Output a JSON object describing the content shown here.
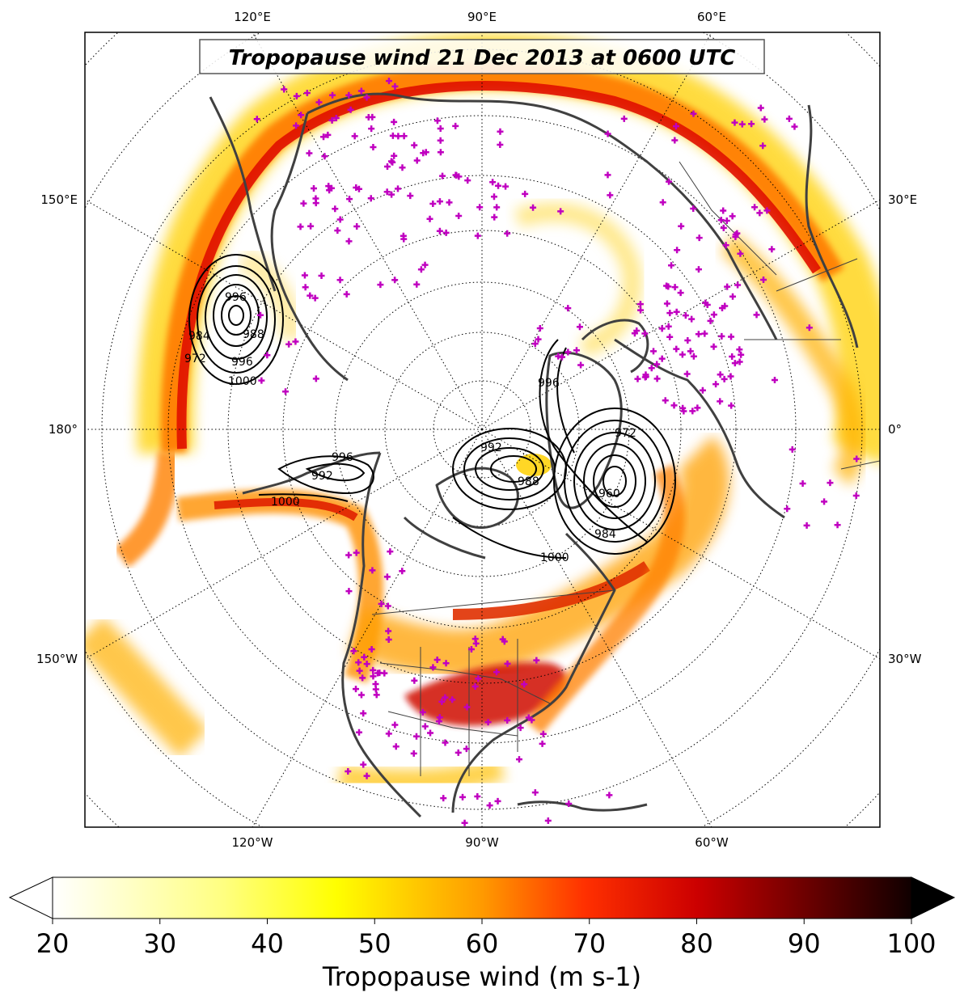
{
  "title": "Tropopause wind 21 Dec 2013 at 0600 UTC",
  "longitude_labels": {
    "top": [
      "120°E",
      "90°E",
      "60°E"
    ],
    "left": [
      "150°E",
      "180°",
      "150°W"
    ],
    "right": [
      "30°E",
      "0°",
      "30°W"
    ],
    "bottom": [
      "120°W",
      "90°W",
      "60°W"
    ]
  },
  "colorbar": {
    "label": "Tropopause wind (m s-1)",
    "ticks": [
      "20",
      "30",
      "40",
      "50",
      "60",
      "70",
      "80",
      "90",
      "100"
    ],
    "min": 20,
    "max": 100,
    "extend": "both",
    "colormap": "hot_r"
  },
  "pressure_contour_labels": [
    "996",
    "984",
    "972",
    "996",
    "988",
    "1000",
    "996",
    "992",
    "1000",
    "992",
    "988",
    "996",
    "984",
    "960",
    "972",
    "1000"
  ],
  "colors": {
    "coastline": "#404040",
    "station_marker": "#c000c0",
    "contour": "#000000",
    "graticule": "#000000"
  }
}
